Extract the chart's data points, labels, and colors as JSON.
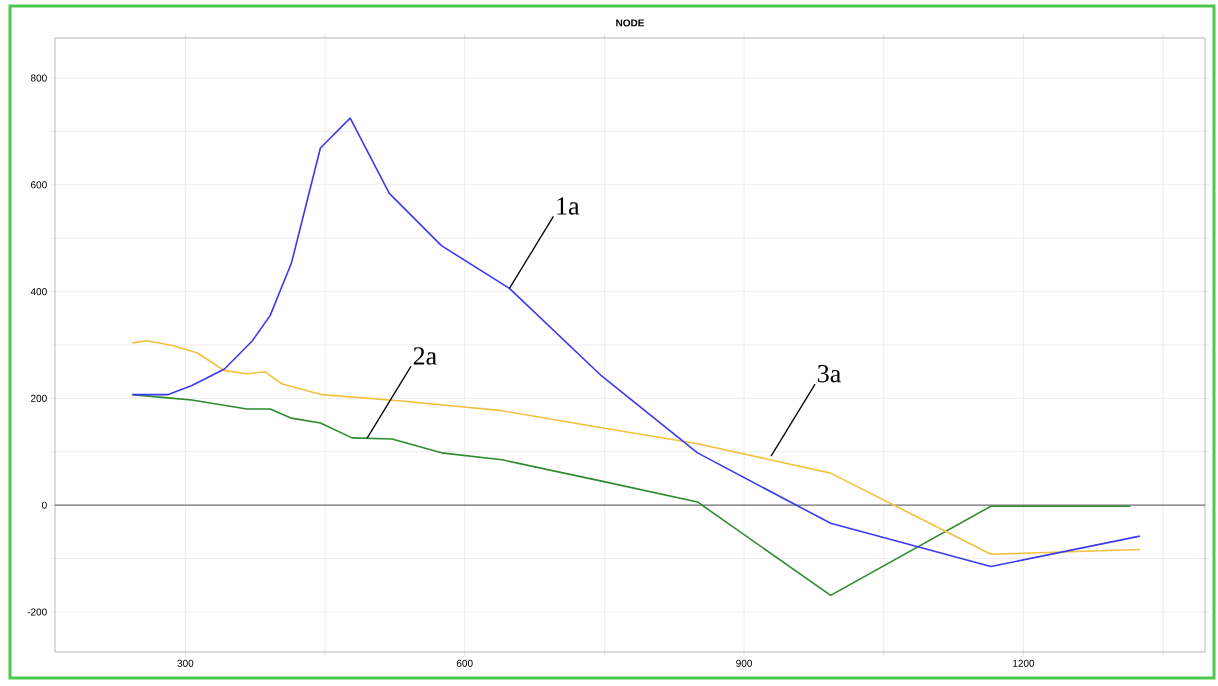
{
  "chart_data": {
    "type": "line",
    "title": "NODE",
    "xlim": [
      160,
      1395
    ],
    "ylim": [
      -275,
      875
    ],
    "xticks": [
      300,
      {
        "value": 450,
        "label": null
      },
      600,
      {
        "value": 750,
        "label": null
      },
      900,
      {
        "value": 1050,
        "label": null
      },
      1200,
      {
        "value": 1350,
        "label": null
      }
    ],
    "yticks": [
      -200,
      {
        "value": -100,
        "label": null
      },
      0,
      {
        "value": 100,
        "label": null
      },
      200,
      {
        "value": 300,
        "label": null
      },
      400,
      {
        "value": 500,
        "label": null
      },
      600,
      {
        "value": 700,
        "label": null
      },
      800
    ],
    "grid": true,
    "marker": "none",
    "line_style": "solid",
    "ref_lines": [
      {
        "axis": "y",
        "value": 0,
        "color": "#707070"
      }
    ],
    "series": [
      {
        "color": "#3a3aee",
        "x": [
          243,
          281,
          307,
          342,
          372,
          391,
          414,
          445,
          477,
          519,
          575,
          648,
          747,
          850,
          993,
          1165,
          1325
        ],
        "values": [
          207,
          207,
          224,
          255,
          308,
          355,
          454,
          669,
          725,
          584,
          486,
          406,
          242,
          98,
          -34,
          -115,
          -58
        ]
      },
      {
        "color": "#f2c040",
        "x": [
          243,
          259,
          286,
          313,
          342,
          366,
          385,
          404,
          447,
          532,
          640,
          747,
          850,
          993,
          1165,
          1325
        ],
        "values": [
          304,
          308,
          299,
          285,
          252,
          246,
          250,
          227,
          207,
          195,
          177,
          145,
          115,
          60,
          -92,
          -83
        ]
      },
      {
        "color": "#2e8b2e",
        "x": [
          243,
          281,
          307,
          366,
          391,
          414,
          445,
          479,
          522,
          575,
          640,
          747,
          850,
          993,
          1165,
          1315
        ],
        "values": [
          207,
          201,
          197,
          180,
          180,
          163,
          154,
          126,
          124,
          98,
          85,
          45,
          6,
          -169,
          -2,
          -2
        ]
      }
    ],
    "annotations": [
      {
        "text": "1a",
        "x": 648,
        "y": 406
      },
      {
        "text": "2a",
        "x": 495,
        "y": 125
      },
      {
        "text": "3a",
        "x": 929,
        "y": 92
      }
    ]
  }
}
